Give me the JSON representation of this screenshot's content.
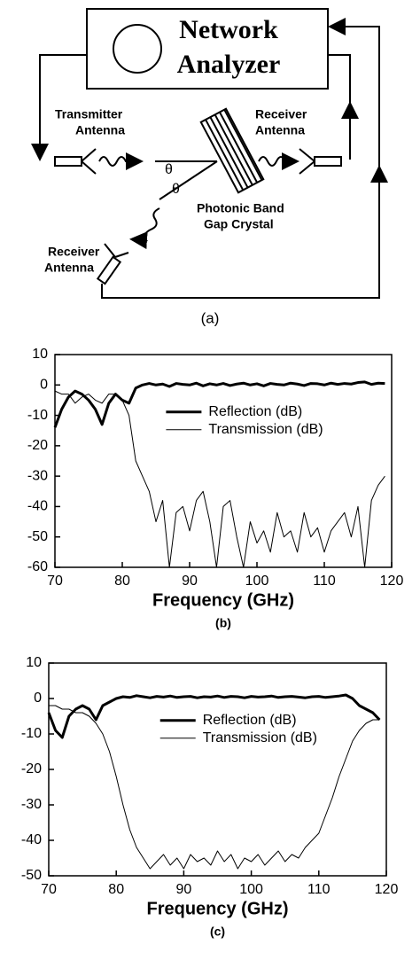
{
  "diagram": {
    "analyzer_label": [
      "Network",
      "Analyzer"
    ],
    "transmitter_label": [
      "Transmitter",
      "Antenna"
    ],
    "receiver_right_label": [
      "Receiver",
      "Antenna"
    ],
    "angle_labels": [
      "θ",
      "θ"
    ],
    "crystal_label": [
      "Photonic Band",
      "Gap Crystal"
    ],
    "receiver_bottom_label": [
      "Receiver",
      "Antenna"
    ],
    "caption": "(a)"
  },
  "chart_data": [
    {
      "type": "line",
      "xlabel": "Frequency (GHz)",
      "caption": "(b)",
      "x": [
        70,
        71,
        72,
        73,
        74,
        75,
        76,
        77,
        78,
        79,
        80,
        81,
        82,
        83,
        84,
        85,
        86,
        87,
        88,
        89,
        90,
        91,
        92,
        93,
        94,
        95,
        96,
        97,
        98,
        99,
        100,
        101,
        102,
        103,
        104,
        105,
        106,
        107,
        108,
        109,
        110,
        111,
        112,
        113,
        114,
        115,
        116,
        117,
        118,
        119
      ],
      "xlim": [
        70,
        120
      ],
      "xticks": [
        70,
        80,
        90,
        100,
        110,
        120
      ],
      "ylim": [
        -60,
        10
      ],
      "yticks": [
        -60,
        -50,
        -40,
        -30,
        -20,
        -10,
        0,
        10
      ],
      "legend": "right",
      "series": [
        {
          "name": "Reflection (dB)",
          "color": "#000000",
          "width": 3,
          "values": [
            -14,
            -8,
            -4,
            -2,
            -3,
            -5,
            -8,
            -13,
            -6,
            -3,
            -5,
            -6,
            -1,
            0,
            0.5,
            0,
            0.3,
            -0.5,
            0.5,
            0.2,
            0,
            0.6,
            -0.3,
            0.4,
            0,
            0.5,
            -0.2,
            0.3,
            0.6,
            0,
            0.4,
            -0.3,
            0.5,
            0.2,
            0,
            0.6,
            0.3,
            -0.2,
            0.5,
            0.4,
            0,
            0.6,
            0.2,
            0.5,
            0.3,
            0.8,
            1,
            0.2,
            0.6,
            0.5
          ]
        },
        {
          "name": "Transmission (dB)",
          "color": "#000000",
          "width": 1,
          "values": [
            -2,
            -3,
            -3,
            -6,
            -4,
            -3,
            -5,
            -6,
            -3,
            -3,
            -5,
            -10,
            -25,
            -30,
            -35,
            -45,
            -38,
            -60,
            -42,
            -40,
            -48,
            -38,
            -35,
            -45,
            -60,
            -40,
            -38,
            -50,
            -60,
            -45,
            -52,
            -48,
            -55,
            -42,
            -50,
            -48,
            -55,
            -42,
            -50,
            -47,
            -55,
            -48,
            -45,
            -42,
            -50,
            -40,
            -60,
            -38,
            -33,
            -30
          ]
        }
      ]
    },
    {
      "type": "line",
      "xlabel": "Frequency (GHz)",
      "caption": "(c)",
      "x": [
        70,
        71,
        72,
        73,
        74,
        75,
        76,
        77,
        78,
        79,
        80,
        81,
        82,
        83,
        84,
        85,
        86,
        87,
        88,
        89,
        90,
        91,
        92,
        93,
        94,
        95,
        96,
        97,
        98,
        99,
        100,
        101,
        102,
        103,
        104,
        105,
        106,
        107,
        108,
        109,
        110,
        111,
        112,
        113,
        114,
        115,
        116,
        117,
        118,
        119
      ],
      "xlim": [
        70,
        120
      ],
      "xticks": [
        70,
        80,
        90,
        100,
        110,
        120
      ],
      "ylim": [
        -50,
        10
      ],
      "yticks": [
        -50,
        -40,
        -30,
        -20,
        -10,
        0,
        10
      ],
      "legend": "right",
      "series": [
        {
          "name": "Reflection (dB)",
          "color": "#000000",
          "width": 3,
          "values": [
            -4,
            -9,
            -11,
            -5,
            -3,
            -2,
            -3,
            -6,
            -2,
            -1,
            0,
            0.5,
            0.3,
            0.8,
            0.5,
            0.2,
            0.6,
            0.4,
            0.7,
            0.3,
            0.5,
            0.6,
            0.2,
            0.5,
            0.4,
            0.7,
            0.3,
            0.6,
            0.5,
            0.2,
            0.6,
            0.4,
            0.5,
            0.7,
            0.3,
            0.5,
            0.6,
            0.4,
            0.2,
            0.5,
            0.6,
            0.3,
            0.5,
            0.7,
            1,
            0,
            -2,
            -3,
            -4,
            -6
          ]
        },
        {
          "name": "Transmission (dB)",
          "color": "#000000",
          "width": 1,
          "values": [
            -2,
            -2,
            -3,
            -3,
            -4,
            -4,
            -5,
            -7,
            -10,
            -15,
            -22,
            -30,
            -37,
            -42,
            -45,
            -48,
            -46,
            -44,
            -47,
            -45,
            -48,
            -44,
            -46,
            -45,
            -47,
            -43,
            -46,
            -44,
            -48,
            -45,
            -46,
            -44,
            -47,
            -45,
            -43,
            -46,
            -44,
            -45,
            -42,
            -40,
            -38,
            -33,
            -28,
            -22,
            -17,
            -12,
            -9,
            -7,
            -6,
            -6
          ]
        }
      ]
    }
  ]
}
